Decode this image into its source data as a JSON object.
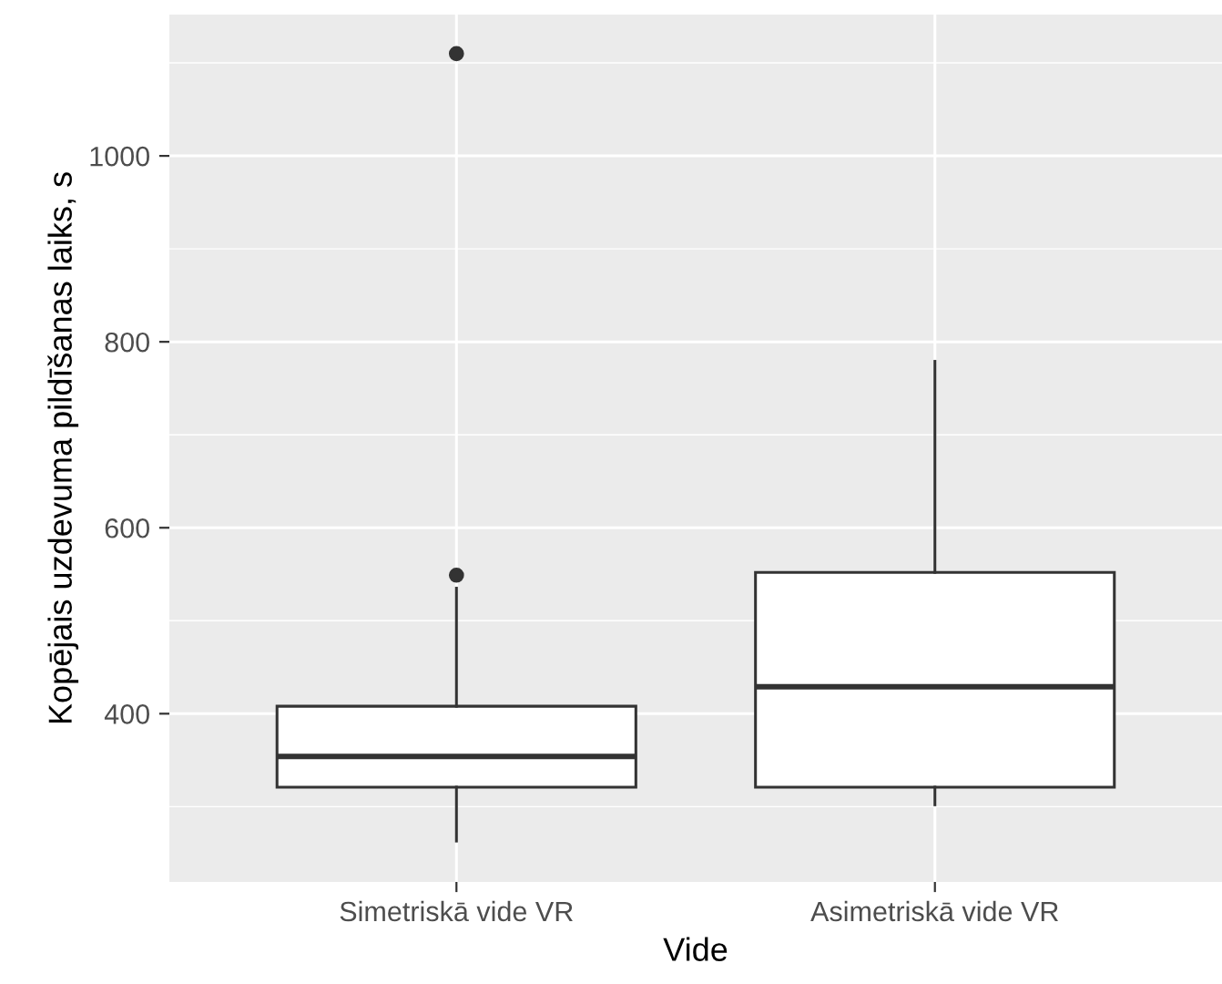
{
  "chart_data": {
    "type": "box",
    "xlabel": "Vide",
    "ylabel": "Kopējais uzdevuma pildīšanas laiks, s",
    "categories": [
      "Simetriskā vide VR",
      "Asimetriskā vide VR"
    ],
    "boxes": [
      {
        "low": 263,
        "q1": 321,
        "median": 354,
        "q3": 408,
        "high": 535,
        "outliers": [
          549,
          1110
        ]
      },
      {
        "low": 302,
        "q1": 321,
        "median": 429,
        "q3": 552,
        "high": 779
      }
    ],
    "ylim": [
      219,
      1152
    ],
    "yticks": [
      400,
      600,
      800,
      1000
    ],
    "grid": true
  }
}
